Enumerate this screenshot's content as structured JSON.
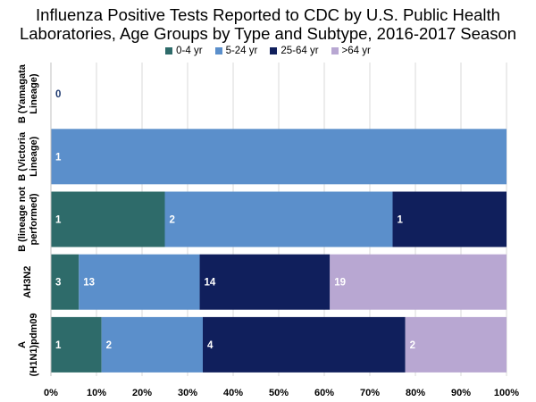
{
  "chart_data": {
    "type": "bar",
    "orientation": "horizontal",
    "stacked": "percent",
    "title_lines": [
      "Influenza Positive Tests Reported to CDC by U.S. Public Health",
      "Laboratories, Age Groups by Type and Subtype, 2016-2017 Season"
    ],
    "categories": [
      {
        "line1": "B (Yamagata",
        "line2": "Lineage)"
      },
      {
        "line1": "B (Victoria",
        "line2": "Lineage)"
      },
      {
        "line1": "B (lineage not",
        "line2": "performed)"
      },
      {
        "line1": "AH3N2",
        "line2": ""
      },
      {
        "line1": "A",
        "line2": "(H1N1)pdm09"
      }
    ],
    "series": [
      {
        "name": "0-4 yr",
        "color": "#2e6b6a",
        "values": [
          0,
          0,
          1,
          3,
          1
        ]
      },
      {
        "name": "5-24 yr",
        "color": "#5b8fcb",
        "values": [
          0,
          1,
          2,
          13,
          2
        ]
      },
      {
        "name": "25-64 yr",
        "color": "#101f5c",
        "values": [
          0,
          0,
          1,
          14,
          4
        ]
      },
      {
        "name": ">64 yr",
        "color": "#b8a7d2",
        "values": [
          0,
          0,
          0,
          19,
          2
        ]
      }
    ],
    "data_labels": [
      [
        "0",
        "",
        "",
        ""
      ],
      [
        "",
        "1",
        "",
        ""
      ],
      [
        "1",
        "2",
        "1",
        ""
      ],
      [
        "3",
        "13",
        "14",
        "19"
      ],
      [
        "1",
        "2",
        "4",
        "2"
      ]
    ],
    "zero_label_color": "#1f3a70",
    "xticks": [
      "0%",
      "10%",
      "20%",
      "30%",
      "40%",
      "50%",
      "60%",
      "70%",
      "80%",
      "90%",
      "100%"
    ],
    "xlim": [
      0,
      100
    ],
    "legend_position": "top-center",
    "grid": true
  }
}
